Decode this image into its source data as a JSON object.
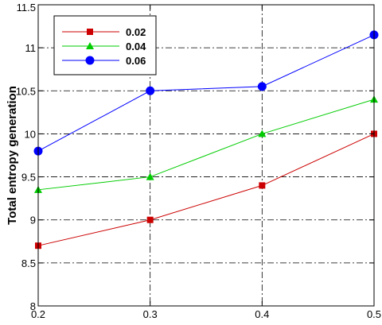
{
  "chart_data": {
    "type": "line",
    "title": "",
    "xlabel": "",
    "ylabel": "Total entropy generation",
    "xlim": [
      0.2,
      0.5
    ],
    "ylim": [
      8,
      11.5
    ],
    "x_ticks": [
      "0.2",
      "0.3",
      "0.4",
      "0.5"
    ],
    "y_ticks": [
      "8",
      "8.5",
      "9",
      "9.5",
      "10",
      "10.5",
      "11",
      "11.5"
    ],
    "grid": true,
    "legend_position": "top-left",
    "x": [
      0.2,
      0.3,
      0.4,
      0.5
    ],
    "series": [
      {
        "name": "0.02",
        "color": "#cc0000",
        "marker": "square",
        "values": [
          8.7,
          9.0,
          9.4,
          10.0
        ]
      },
      {
        "name": "0.04",
        "color": "#00cc00",
        "marker": "triangle",
        "values": [
          9.35,
          9.5,
          10.0,
          10.4
        ]
      },
      {
        "name": "0.06",
        "color": "#0000ff",
        "marker": "circle",
        "values": [
          9.8,
          10.5,
          10.55,
          11.15
        ]
      }
    ]
  }
}
